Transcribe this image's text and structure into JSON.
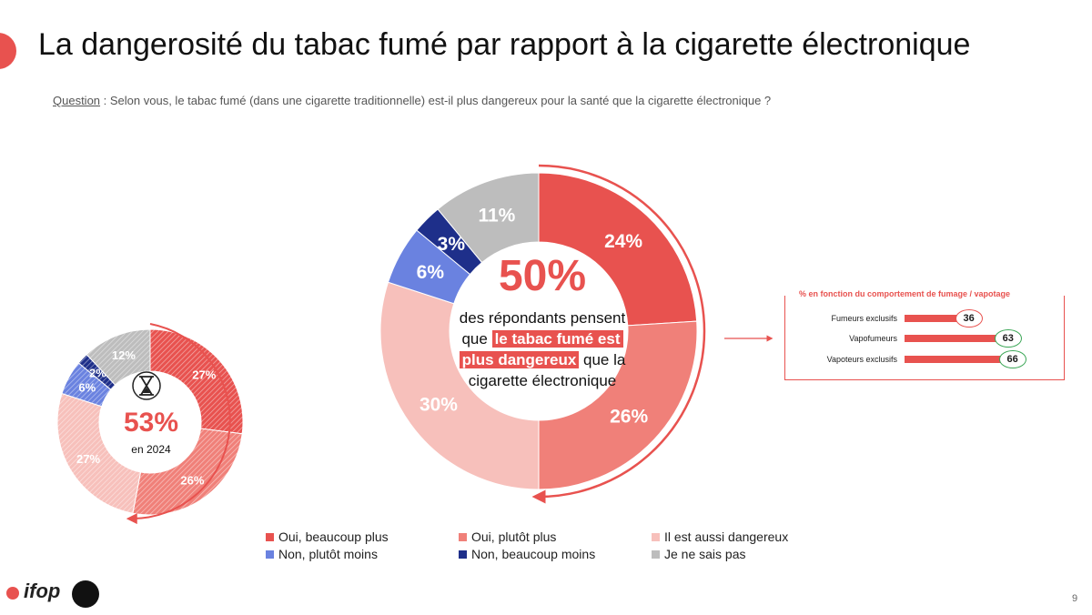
{
  "title": "La dangerosité du tabac fumé par rapport à la cigarette électronique",
  "question": {
    "label": "Question",
    "text": " : Selon vous, le tabac fumé (dans une cigarette traditionnelle) est-il plus dangereux pour la santé que la cigarette électronique ?"
  },
  "colors": {
    "accent": "#e8524f",
    "oui_beaucoup": "#e8524f",
    "oui_plutot": "#f08079",
    "aussi": "#f7c0bb",
    "non_plutot": "#6a82e0",
    "non_beaucoup": "#1e2f8a",
    "nsp": "#bdbdbd",
    "green": "#3aa655"
  },
  "main_center": {
    "big": "50%",
    "line1": "des répondants pensent",
    "line2_pre": "que ",
    "highlight1": "le tabac fumé est",
    "highlight2": "plus dangereux",
    "line3_post": " que la",
    "line4": "cigarette électronique"
  },
  "small_center": {
    "big": "53%",
    "year": "en 2024"
  },
  "legend": [
    {
      "label": "Oui, beaucoup plus",
      "color": "#e8524f"
    },
    {
      "label": "Oui, plutôt plus",
      "color": "#f08079"
    },
    {
      "label": "Il est aussi dangereux",
      "color": "#f7c0bb"
    },
    {
      "label": "Non, plutôt moins",
      "color": "#6a82e0"
    },
    {
      "label": "Non, beaucoup moins",
      "color": "#1e2f8a"
    },
    {
      "label": "Je ne sais pas",
      "color": "#bdbdbd"
    }
  ],
  "breakdown": {
    "title": "% en fonction du comportement de fumage / vapotage",
    "rows": [
      {
        "label": "Fumeurs exclusifs",
        "value": 36,
        "display": "36",
        "ring": "red"
      },
      {
        "label": "Vapofumeurs",
        "value": 63,
        "display": "63",
        "ring": "green"
      },
      {
        "label": "Vapoteurs exclusifs",
        "value": 66,
        "display": "66",
        "ring": "green"
      }
    ]
  },
  "page_number": "9",
  "logo_text": "ifop",
  "chart_data": [
    {
      "type": "donut",
      "categories": [
        "Oui, beaucoup plus",
        "Oui, plutôt plus",
        "Il est aussi dangereux",
        "Non, plutôt moins",
        "Non, beaucoup moins",
        "Je ne sais pas"
      ],
      "values": [
        24,
        26,
        30,
        6,
        3,
        11
      ],
      "labels": [
        "24%",
        "26%",
        "30%",
        "6%",
        "3%",
        "11%"
      ]
    },
    {
      "type": "donut",
      "categories": [
        "Oui, beaucoup plus",
        "Oui, plutôt plus",
        "Il est aussi dangereux",
        "Non, plutôt moins",
        "Non, beaucoup moins",
        "Je ne sais pas"
      ],
      "values": [
        27,
        26,
        27,
        6,
        2,
        12
      ],
      "labels": [
        "27%",
        "26%",
        "27%",
        "6%",
        "2%",
        "12%"
      ]
    },
    {
      "type": "bar",
      "categories": [
        "Fumeurs exclusifs",
        "Vapofumeurs",
        "Vapoteurs exclusifs"
      ],
      "values": [
        36,
        63,
        66
      ]
    }
  ]
}
